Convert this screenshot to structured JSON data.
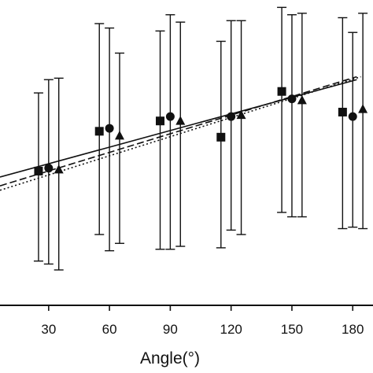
{
  "chart_data": {
    "type": "scatter",
    "title": "",
    "xlabel": "Angle(°)",
    "ylabel": "",
    "xlim": [
      6,
      190
    ],
    "ylim": [
      -0.87,
      1.2
    ],
    "xticks": [
      "30",
      "60",
      "90",
      "120",
      "150",
      "180"
    ],
    "xtick_values": [
      30,
      60,
      90,
      120,
      150,
      180
    ],
    "grid": false,
    "legend": "none",
    "series": [
      {
        "marker": "square",
        "x": [
          25,
          55,
          85,
          115,
          145,
          175
        ],
        "y": [
          0.04,
          0.31,
          0.38,
          0.27,
          0.58,
          0.44
        ],
        "err_low": [
          -0.57,
          -0.39,
          -0.49,
          -0.48,
          -0.24,
          -0.35
        ],
        "err_high": [
          0.57,
          1.04,
          0.99,
          0.92,
          1.15,
          1.08
        ]
      },
      {
        "marker": "circle",
        "x": [
          30,
          60,
          90,
          120,
          150,
          180
        ],
        "y": [
          0.06,
          0.33,
          0.41,
          0.41,
          0.53,
          0.41
        ],
        "err_low": [
          -0.59,
          -0.5,
          -0.49,
          -0.36,
          -0.27,
          -0.34
        ],
        "err_high": [
          0.66,
          1.01,
          1.1,
          1.06,
          1.1,
          0.98
        ]
      },
      {
        "marker": "triangle",
        "x": [
          35,
          65,
          95,
          125,
          155,
          185
        ],
        "y": [
          0.05,
          0.28,
          0.38,
          0.42,
          0.52,
          0.46
        ],
        "err_low": [
          -0.63,
          -0.45,
          -0.47,
          -0.39,
          -0.27,
          -0.35
        ],
        "err_high": [
          0.67,
          0.84,
          1.05,
          1.06,
          1.11,
          1.11
        ]
      }
    ],
    "fit_lines": [
      {
        "style": "solid",
        "x": [
          6,
          182
        ],
        "y": [
          0.0,
          0.66
        ]
      },
      {
        "style": "dashed",
        "x": [
          6,
          182
        ],
        "y": [
          -0.06,
          0.68
        ]
      },
      {
        "style": "dotted",
        "x": [
          6,
          184
        ],
        "y": [
          -0.09,
          0.68
        ]
      }
    ],
    "colors": {
      "marker": "#111111",
      "line": "#111111"
    }
  }
}
